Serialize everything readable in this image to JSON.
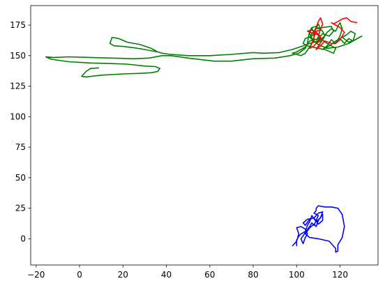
{
  "chart_data": {
    "type": "line",
    "title": "",
    "xlabel": "",
    "ylabel": "",
    "xlim": [
      -22.5,
      137.5
    ],
    "ylim": [
      -21.5,
      191
    ],
    "grid": false,
    "legend": "none",
    "x_ticks": [
      -20,
      0,
      20,
      40,
      60,
      80,
      100,
      120
    ],
    "x_tick_labels": [
      "−20",
      "0",
      "20",
      "40",
      "60",
      "80",
      "100",
      "120"
    ],
    "y_ticks": [
      0,
      25,
      50,
      75,
      100,
      125,
      150,
      175
    ],
    "y_tick_labels": [
      "0",
      "25",
      "50",
      "75",
      "100",
      "125",
      "150",
      "175"
    ],
    "series": [
      {
        "color": "#008000",
        "points": [
          [
            9,
            140
          ],
          [
            5,
            139.5
          ],
          [
            3,
            137
          ],
          [
            1,
            133
          ],
          [
            3,
            132.5
          ],
          [
            10,
            134
          ],
          [
            20,
            135
          ],
          [
            28,
            135.5
          ],
          [
            33,
            136
          ],
          [
            36,
            137
          ],
          [
            37,
            139.5
          ],
          [
            35,
            141
          ],
          [
            30,
            141.5
          ],
          [
            22,
            143
          ],
          [
            15,
            143.5
          ],
          [
            5,
            144
          ],
          [
            -5,
            145
          ],
          [
            -13,
            147
          ],
          [
            -15.5,
            149
          ],
          [
            -12,
            148.5
          ],
          [
            -5,
            149
          ],
          [
            5,
            148.5
          ],
          [
            15,
            148
          ],
          [
            25,
            147.5
          ],
          [
            32,
            148
          ],
          [
            38,
            150
          ],
          [
            42,
            150
          ],
          [
            50,
            148
          ],
          [
            62,
            145.5
          ],
          [
            70,
            145.5
          ],
          [
            80,
            147.5
          ],
          [
            90,
            148
          ],
          [
            97,
            150
          ],
          [
            101,
            152
          ],
          [
            104,
            156
          ],
          [
            105,
            160
          ],
          [
            105.5,
            166
          ],
          [
            106,
            170
          ],
          [
            107,
            173
          ],
          [
            106,
            168
          ],
          [
            108,
            161
          ],
          [
            108,
            170
          ],
          [
            110,
            176
          ],
          [
            111,
            172
          ],
          [
            110,
            166
          ],
          [
            109,
            160
          ],
          [
            112,
            163
          ],
          [
            114,
            169
          ],
          [
            116,
            172
          ],
          [
            118,
            170
          ],
          [
            119,
            174
          ],
          [
            120,
            177
          ],
          [
            121,
            172
          ],
          [
            120,
            166
          ],
          [
            118,
            160
          ],
          [
            116,
            163
          ],
          [
            114,
            158
          ],
          [
            112,
            155
          ],
          [
            115,
            158
          ],
          [
            118,
            162
          ],
          [
            120,
            164
          ],
          [
            122,
            160
          ],
          [
            124,
            164
          ],
          [
            126,
            162
          ],
          [
            127,
            168
          ],
          [
            125,
            170
          ],
          [
            123,
            167
          ],
          [
            121,
            165
          ],
          [
            124,
            161
          ],
          [
            127,
            163
          ],
          [
            129,
            165
          ],
          [
            130,
            166
          ],
          [
            124,
            160
          ],
          [
            119,
            157
          ],
          [
            114,
            156
          ],
          [
            110,
            159
          ],
          [
            108,
            162
          ],
          [
            106,
            165
          ],
          [
            107,
            168
          ],
          [
            109,
            172
          ],
          [
            112,
            173
          ],
          [
            116,
            174
          ],
          [
            117,
            170
          ],
          [
            115,
            166
          ],
          [
            112,
            168
          ],
          [
            110,
            164
          ],
          [
            106,
            162
          ],
          [
            104,
            157
          ],
          [
            102,
            155
          ],
          [
            100,
            153
          ],
          [
            98,
            152
          ],
          [
            100,
            151
          ],
          [
            102,
            150
          ],
          [
            104,
            152
          ],
          [
            106,
            157
          ],
          [
            108,
            163
          ],
          [
            111,
            164
          ],
          [
            114,
            160
          ],
          [
            116,
            158
          ],
          [
            118,
            156
          ],
          [
            117,
            152
          ],
          [
            113,
            155
          ],
          [
            110,
            156
          ],
          [
            105,
            158
          ],
          [
            103,
            160
          ],
          [
            104,
            164
          ],
          [
            107,
            166
          ],
          [
            108,
            168
          ],
          [
            107,
            173
          ],
          [
            109,
            174
          ],
          [
            112,
            170
          ],
          [
            113,
            166
          ],
          [
            110,
            162
          ],
          [
            106,
            160
          ],
          [
            103,
            158
          ],
          [
            98,
            155
          ],
          [
            92,
            152.5
          ],
          [
            85,
            152
          ],
          [
            80,
            152.5
          ],
          [
            70,
            151
          ],
          [
            60,
            150
          ],
          [
            50,
            150
          ],
          [
            42,
            151
          ],
          [
            38,
            152
          ],
          [
            36,
            153
          ],
          [
            30,
            155
          ],
          [
            25,
            156.5
          ],
          [
            20,
            157.5
          ],
          [
            16,
            158
          ],
          [
            14,
            160
          ],
          [
            15,
            165
          ],
          [
            18,
            164
          ],
          [
            22,
            161
          ],
          [
            28,
            159
          ],
          [
            33,
            156
          ],
          [
            36,
            153
          ]
        ]
      },
      {
        "color": "#ff0000",
        "points": [
          [
            108,
            168
          ],
          [
            109,
            173
          ],
          [
            110,
            178
          ],
          [
            111,
            181
          ],
          [
            112,
            176
          ],
          [
            111,
            171
          ],
          [
            109,
            170
          ],
          [
            108,
            165
          ],
          [
            107,
            160
          ],
          [
            106,
            156
          ],
          [
            108,
            158
          ],
          [
            110,
            162
          ],
          [
            111,
            166
          ],
          [
            109,
            169
          ],
          [
            107,
            171
          ],
          [
            105,
            170
          ],
          [
            108,
            168
          ],
          [
            110,
            167
          ],
          [
            112,
            163
          ],
          [
            110,
            158
          ],
          [
            109,
            155
          ],
          [
            111,
            158
          ],
          [
            113,
            162
          ],
          [
            116,
            160
          ],
          [
            118,
            160
          ],
          [
            120,
            163
          ],
          [
            122,
            169
          ],
          [
            120,
            173
          ],
          [
            118,
            175
          ],
          [
            116,
            177
          ],
          [
            117,
            176
          ],
          [
            119,
            178
          ],
          [
            121,
            180
          ],
          [
            123,
            181
          ],
          [
            125,
            178
          ],
          [
            128,
            177
          ]
        ]
      },
      {
        "color": "#0000ff",
        "points": [
          [
            98,
            -6
          ],
          [
            100,
            -2
          ],
          [
            101,
            4
          ],
          [
            100,
            9
          ],
          [
            102,
            10
          ],
          [
            104,
            8
          ],
          [
            105,
            4
          ],
          [
            104,
            1
          ],
          [
            103,
            -4
          ],
          [
            102,
            0
          ],
          [
            104,
            5
          ],
          [
            106,
            10
          ],
          [
            107,
            13
          ],
          [
            108,
            11
          ],
          [
            109,
            15
          ],
          [
            110,
            19
          ],
          [
            108,
            21
          ],
          [
            109,
            23
          ],
          [
            109,
            25
          ],
          [
            110,
            27
          ],
          [
            113,
            26
          ],
          [
            116,
            26
          ],
          [
            119,
            25
          ],
          [
            121,
            20
          ],
          [
            122,
            10
          ],
          [
            121,
            1
          ],
          [
            119,
            -5
          ],
          [
            119,
            -10
          ],
          [
            118,
            -11
          ],
          [
            118,
            -8
          ],
          [
            115,
            -2
          ],
          [
            110,
            0
          ],
          [
            106,
            1
          ],
          [
            104,
            4
          ],
          [
            106,
            9
          ],
          [
            108,
            12
          ],
          [
            109,
            10
          ],
          [
            110,
            15
          ],
          [
            112,
            20
          ],
          [
            112,
            15
          ],
          [
            110,
            12
          ],
          [
            108,
            17
          ],
          [
            106,
            16
          ],
          [
            104,
            11
          ],
          [
            103,
            13
          ],
          [
            105,
            16
          ],
          [
            108,
            17
          ],
          [
            110,
            21
          ],
          [
            112,
            22
          ],
          [
            111,
            17
          ],
          [
            109,
            14
          ],
          [
            107,
            19
          ],
          [
            106,
            14
          ],
          [
            105,
            11
          ],
          [
            104,
            6
          ],
          [
            102,
            4
          ],
          [
            101,
            2
          ],
          [
            100,
            -1
          ],
          [
            100,
            -6
          ]
        ]
      }
    ]
  }
}
